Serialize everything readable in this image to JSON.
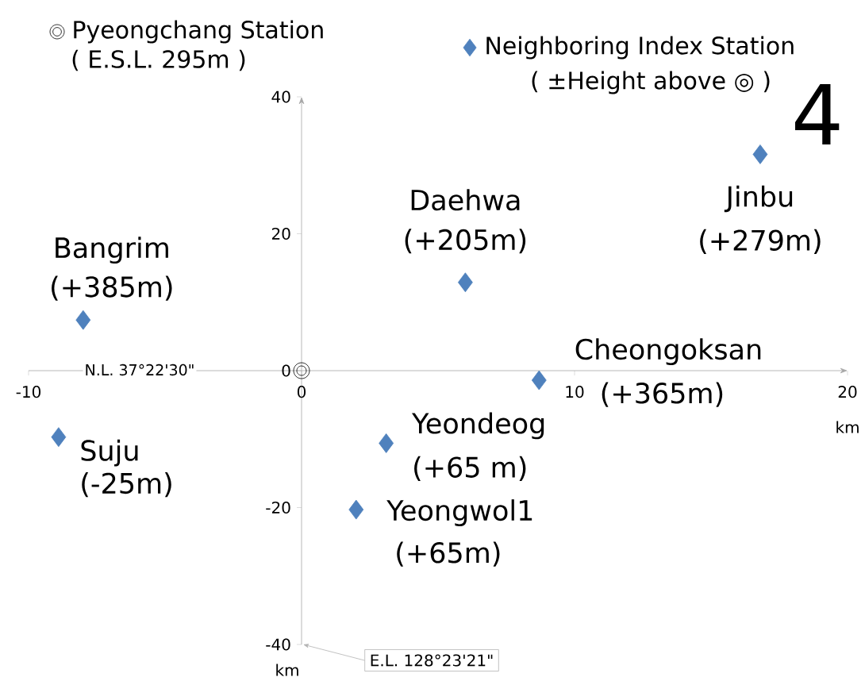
{
  "chart_data": {
    "type": "scatter",
    "xlim": [
      -10,
      20
    ],
    "ylim": [
      -40,
      40
    ],
    "xticks": [
      -10,
      0,
      10,
      20
    ],
    "yticks": [
      -40,
      -20,
      0,
      20,
      40
    ],
    "grid": false,
    "legend": "top",
    "series": [
      {
        "name": "Pyeongchang Station",
        "color": "#000000",
        "marker": "circle",
        "x": [
          0
        ],
        "values": [
          0
        ]
      },
      {
        "name": "Neighboring Index Station",
        "color": "#4f81bd",
        "marker": "diamond",
        "x": [
          -8.0,
          -8.9,
          6.0,
          16.8,
          8.7,
          3.1,
          2.0
        ],
        "values": [
          7.4,
          -9.7,
          12.9,
          31.6,
          -1.4,
          -10.6,
          -20.3
        ]
      }
    ],
    "annotations": [
      {
        "text": "Bangrim",
        "x": -8.0,
        "y": 7.4
      },
      {
        "text": "(+385m)",
        "x": -8.0,
        "y": 7.4
      },
      {
        "text": "Suju",
        "x": -8.9,
        "y": -9.7
      },
      {
        "text": "(-25m)",
        "x": -8.9,
        "y": -9.7
      },
      {
        "text": "Daehwa",
        "x": 6.0,
        "y": 12.9
      },
      {
        "text": "(+205m)",
        "x": 6.0,
        "y": 12.9
      },
      {
        "text": "Jinbu",
        "x": 16.8,
        "y": 31.6
      },
      {
        "text": "(+279m)",
        "x": 16.8,
        "y": 31.6
      },
      {
        "text": "Cheongoksan",
        "x": 8.7,
        "y": -1.4
      },
      {
        "text": "(+365m)",
        "x": 8.7,
        "y": -1.4
      },
      {
        "text": "Yeondeog",
        "x": 3.1,
        "y": -10.6
      },
      {
        "text": "(+65 m)",
        "x": 3.1,
        "y": -10.6
      },
      {
        "text": "Yeongwol1",
        "x": 2.0,
        "y": -20.3
      },
      {
        "text": "(+65m)",
        "x": 2.0,
        "y": -20.3
      },
      "( E.S.L. 295m )",
      "( ±Height above ◎ )",
      "N.L. 37°22'30\"",
      "E.L. 128°23'21\"",
      "4",
      "km",
      "km"
    ]
  }
}
